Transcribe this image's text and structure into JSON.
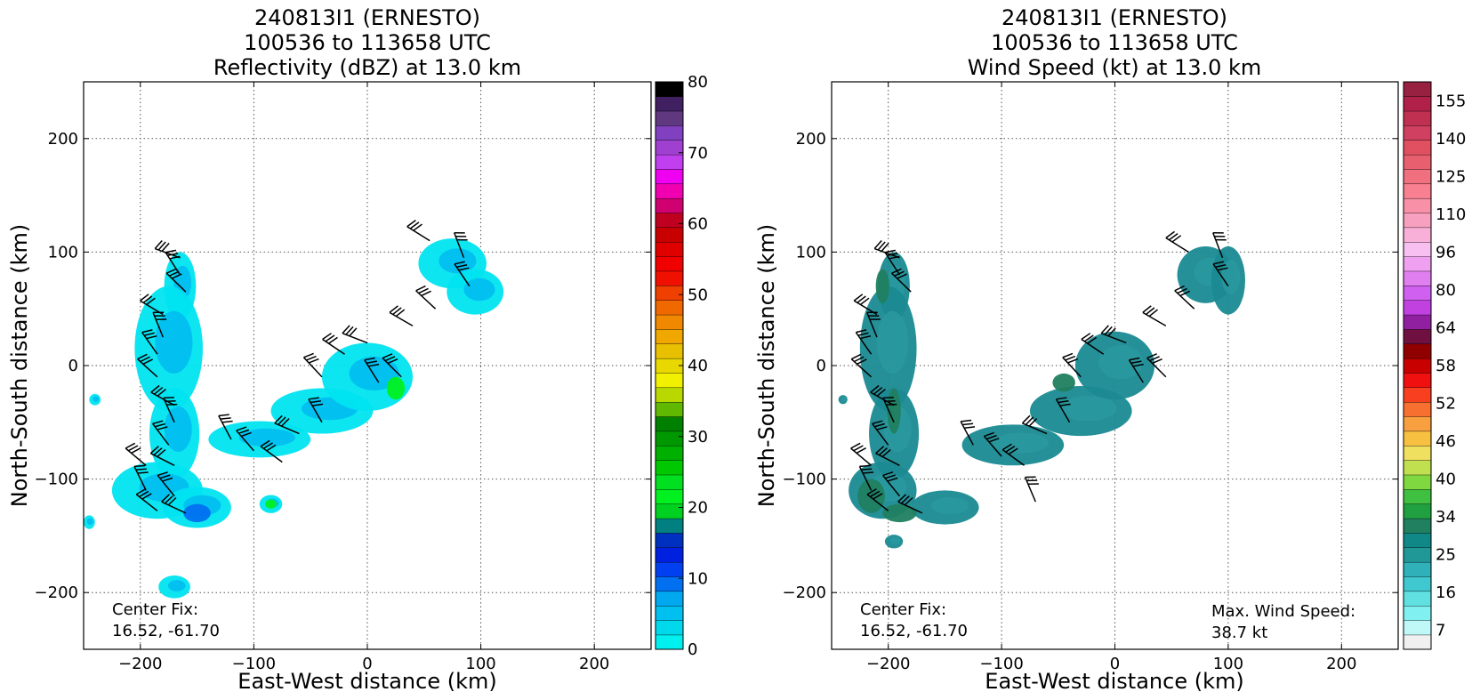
{
  "chart_data": [
    {
      "type": "heatmap",
      "title_lines": [
        "240813I1 (ERNESTO)",
        "100536 to 113658 UTC",
        "Reflectivity (dBZ) at 13.0 km"
      ],
      "xlabel": "East-West distance (km)",
      "ylabel": "North-South distance (km)",
      "xlim": [
        -250,
        250
      ],
      "ylim": [
        -250,
        250
      ],
      "xticks": [
        -200,
        -100,
        0,
        100,
        200
      ],
      "yticks": [
        -200,
        -100,
        0,
        100,
        200
      ],
      "grid": true,
      "colorbar": {
        "range": [
          0,
          80
        ],
        "ticks": [
          0,
          10,
          20,
          30,
          40,
          50,
          60,
          70,
          80
        ],
        "colors": [
          "#00f0f0",
          "#00d8ec",
          "#00c0f0",
          "#00a8f0",
          "#0070f0",
          "#0040f0",
          "#0020e0",
          "#0030c0",
          "#008080",
          "#00d020",
          "#00f020",
          "#00e020",
          "#00c800",
          "#00b000",
          "#009800",
          "#008000",
          "#60b800",
          "#b8d800",
          "#f0f000",
          "#e8d800",
          "#e8c000",
          "#f0a800",
          "#f08800",
          "#f06800",
          "#f04000",
          "#f01000",
          "#f00000",
          "#e00000",
          "#c80000",
          "#c00020",
          "#d00070",
          "#f000b0",
          "#f000f0",
          "#c040f0",
          "#a040d0",
          "#8040c0",
          "#603880",
          "#402060",
          "#000000"
        ]
      },
      "center_fix": {
        "label": "Center Fix:",
        "value": "16.52, -61.70"
      },
      "echo_regions": [
        {
          "cx": -165,
          "cy": 70,
          "rx": 14,
          "ry": 30
        },
        {
          "cx": -175,
          "cy": 15,
          "rx": 30,
          "ry": 55
        },
        {
          "cx": -170,
          "cy": -60,
          "rx": 22,
          "ry": 40
        },
        {
          "cx": -185,
          "cy": -110,
          "rx": 40,
          "ry": 25
        },
        {
          "cx": -150,
          "cy": -125,
          "rx": 30,
          "ry": 18
        },
        {
          "cx": -95,
          "cy": -65,
          "rx": 45,
          "ry": 16
        },
        {
          "cx": -40,
          "cy": -40,
          "rx": 45,
          "ry": 20
        },
        {
          "cx": 0,
          "cy": -10,
          "rx": 40,
          "ry": 30
        },
        {
          "cx": 75,
          "cy": 90,
          "rx": 30,
          "ry": 22
        },
        {
          "cx": 95,
          "cy": 65,
          "rx": 25,
          "ry": 20
        },
        {
          "cx": -170,
          "cy": -195,
          "rx": 14,
          "ry": 10
        },
        {
          "cx": -85,
          "cy": -122,
          "rx": 10,
          "ry": 8
        },
        {
          "cx": -240,
          "cy": -30,
          "rx": 5,
          "ry": 5
        },
        {
          "cx": -245,
          "cy": -138,
          "rx": 5,
          "ry": 6
        }
      ],
      "core_regions": [
        {
          "cx": 25,
          "cy": -20,
          "rx": 8,
          "ry": 10,
          "value": 22
        },
        {
          "cx": -85,
          "cy": -122,
          "rx": 5,
          "ry": 4,
          "value": 22
        },
        {
          "cx": -150,
          "cy": -130,
          "rx": 12,
          "ry": 8,
          "value": 10
        }
      ],
      "wind_barbs": [
        {
          "x": -165,
          "y": 95
        },
        {
          "x": -165,
          "y": 80
        },
        {
          "x": -160,
          "y": 65
        },
        {
          "x": -180,
          "y": 45
        },
        {
          "x": -180,
          "y": 25
        },
        {
          "x": -185,
          "y": 10
        },
        {
          "x": -185,
          "y": -10
        },
        {
          "x": -170,
          "y": -35
        },
        {
          "x": -170,
          "y": -50
        },
        {
          "x": -175,
          "y": -70
        },
        {
          "x": -195,
          "y": -88
        },
        {
          "x": -170,
          "y": -88
        },
        {
          "x": -195,
          "y": -110
        },
        {
          "x": -170,
          "y": -115
        },
        {
          "x": -185,
          "y": -128
        },
        {
          "x": -160,
          "y": -130
        },
        {
          "x": -120,
          "y": -65
        },
        {
          "x": -100,
          "y": -75
        },
        {
          "x": -75,
          "y": -85
        },
        {
          "x": -60,
          "y": -60
        },
        {
          "x": -40,
          "y": -50
        },
        {
          "x": -40,
          "y": -10
        },
        {
          "x": -20,
          "y": 10
        },
        {
          "x": 0,
          "y": 20
        },
        {
          "x": 10,
          "y": -15
        },
        {
          "x": 30,
          "y": -10
        },
        {
          "x": 55,
          "y": 110
        },
        {
          "x": 85,
          "y": 95
        },
        {
          "x": 90,
          "y": 70
        },
        {
          "x": 60,
          "y": 50
        },
        {
          "x": 40,
          "y": 35
        }
      ]
    },
    {
      "type": "heatmap",
      "title_lines": [
        "240813I1 (ERNESTO)",
        "100536 to 113658 UTC",
        "Wind Speed (kt) at 13.0 km"
      ],
      "xlabel": "East-West distance (km)",
      "ylabel": "North-South distance (km)",
      "xlim": [
        -250,
        250
      ],
      "ylim": [
        -250,
        250
      ],
      "xticks": [
        -200,
        -100,
        0,
        100,
        200
      ],
      "yticks": [
        -200,
        -100,
        0,
        100,
        200
      ],
      "grid": true,
      "colorbar": {
        "range": [
          0,
          160
        ],
        "tick_labels": [
          "7",
          "16",
          "25",
          "34",
          "40",
          "46",
          "52",
          "58",
          "64",
          "80",
          "96",
          "110",
          "125",
          "140",
          "155"
        ],
        "colors": [
          "#f0f0f0",
          "#c0f8f8",
          "#80f0f0",
          "#60e0e0",
          "#40c8d0",
          "#30b0b8",
          "#209898",
          "#108888",
          "#208060",
          "#20a040",
          "#40c040",
          "#80d840",
          "#c0e050",
          "#f0e060",
          "#f8c040",
          "#f8a040",
          "#f87030",
          "#f84020",
          "#f01010",
          "#c80000",
          "#900000",
          "#701040",
          "#9020a0",
          "#c040e0",
          "#d060f0",
          "#e080f0",
          "#f0a0f0",
          "#f8c0f0",
          "#f8b0d8",
          "#f8a0c0",
          "#f890a8",
          "#f88090",
          "#f07080",
          "#e86070",
          "#e05060",
          "#d04060",
          "#c03050",
          "#b02048",
          "#982040"
        ]
      },
      "center_fix": {
        "label": "Center Fix:",
        "value": "16.52, -61.70"
      },
      "max_wind": {
        "label": "Max. Wind Speed:",
        "value": "38.7 kt"
      },
      "echo_regions": [
        {
          "cx": -195,
          "cy": 70,
          "rx": 14,
          "ry": 30
        },
        {
          "cx": -200,
          "cy": 15,
          "rx": 25,
          "ry": 55
        },
        {
          "cx": -195,
          "cy": -60,
          "rx": 22,
          "ry": 40
        },
        {
          "cx": -205,
          "cy": -110,
          "rx": 30,
          "ry": 25
        },
        {
          "cx": -150,
          "cy": -125,
          "rx": 30,
          "ry": 15
        },
        {
          "cx": -90,
          "cy": -70,
          "rx": 45,
          "ry": 18
        },
        {
          "cx": -30,
          "cy": -40,
          "rx": 45,
          "ry": 22
        },
        {
          "cx": 0,
          "cy": 0,
          "rx": 35,
          "ry": 30
        },
        {
          "cx": 80,
          "cy": 80,
          "rx": 25,
          "ry": 25
        },
        {
          "cx": 100,
          "cy": 75,
          "rx": 15,
          "ry": 30
        },
        {
          "cx": -195,
          "cy": -155,
          "rx": 8,
          "ry": 6
        },
        {
          "cx": -240,
          "cy": -30,
          "rx": 4,
          "ry": 4
        }
      ],
      "core_regions": [
        {
          "cx": -215,
          "cy": -115,
          "rx": 12,
          "ry": 15,
          "value": 34
        },
        {
          "cx": -190,
          "cy": -130,
          "rx": 15,
          "ry": 8,
          "value": 34
        },
        {
          "cx": -45,
          "cy": -15,
          "rx": 10,
          "ry": 8,
          "value": 34
        },
        {
          "cx": -205,
          "cy": 70,
          "rx": 6,
          "ry": 15,
          "value": 34
        },
        {
          "cx": -195,
          "cy": -40,
          "rx": 6,
          "ry": 20,
          "value": 34
        }
      ],
      "wind_barbs": [
        {
          "x": -190,
          "y": 95
        },
        {
          "x": -190,
          "y": 80
        },
        {
          "x": -180,
          "y": 65
        },
        {
          "x": -210,
          "y": 45
        },
        {
          "x": -210,
          "y": 25
        },
        {
          "x": -215,
          "y": 10
        },
        {
          "x": -215,
          "y": -10
        },
        {
          "x": -195,
          "y": -35
        },
        {
          "x": -195,
          "y": -50
        },
        {
          "x": -200,
          "y": -70
        },
        {
          "x": -215,
          "y": -88
        },
        {
          "x": -190,
          "y": -88
        },
        {
          "x": -215,
          "y": -110
        },
        {
          "x": -190,
          "y": -115
        },
        {
          "x": -200,
          "y": -128
        },
        {
          "x": -170,
          "y": -130
        },
        {
          "x": -125,
          "y": -70
        },
        {
          "x": -100,
          "y": -80
        },
        {
          "x": -80,
          "y": -88
        },
        {
          "x": -60,
          "y": -60
        },
        {
          "x": -40,
          "y": -50
        },
        {
          "x": -30,
          "y": -10
        },
        {
          "x": -10,
          "y": 10
        },
        {
          "x": 10,
          "y": 20
        },
        {
          "x": 25,
          "y": -15
        },
        {
          "x": 45,
          "y": -10
        },
        {
          "x": 65,
          "y": 100
        },
        {
          "x": 95,
          "y": 95
        },
        {
          "x": 100,
          "y": 70
        },
        {
          "x": 70,
          "y": 50
        },
        {
          "x": 45,
          "y": 35
        },
        {
          "x": -70,
          "y": -120
        }
      ]
    }
  ]
}
